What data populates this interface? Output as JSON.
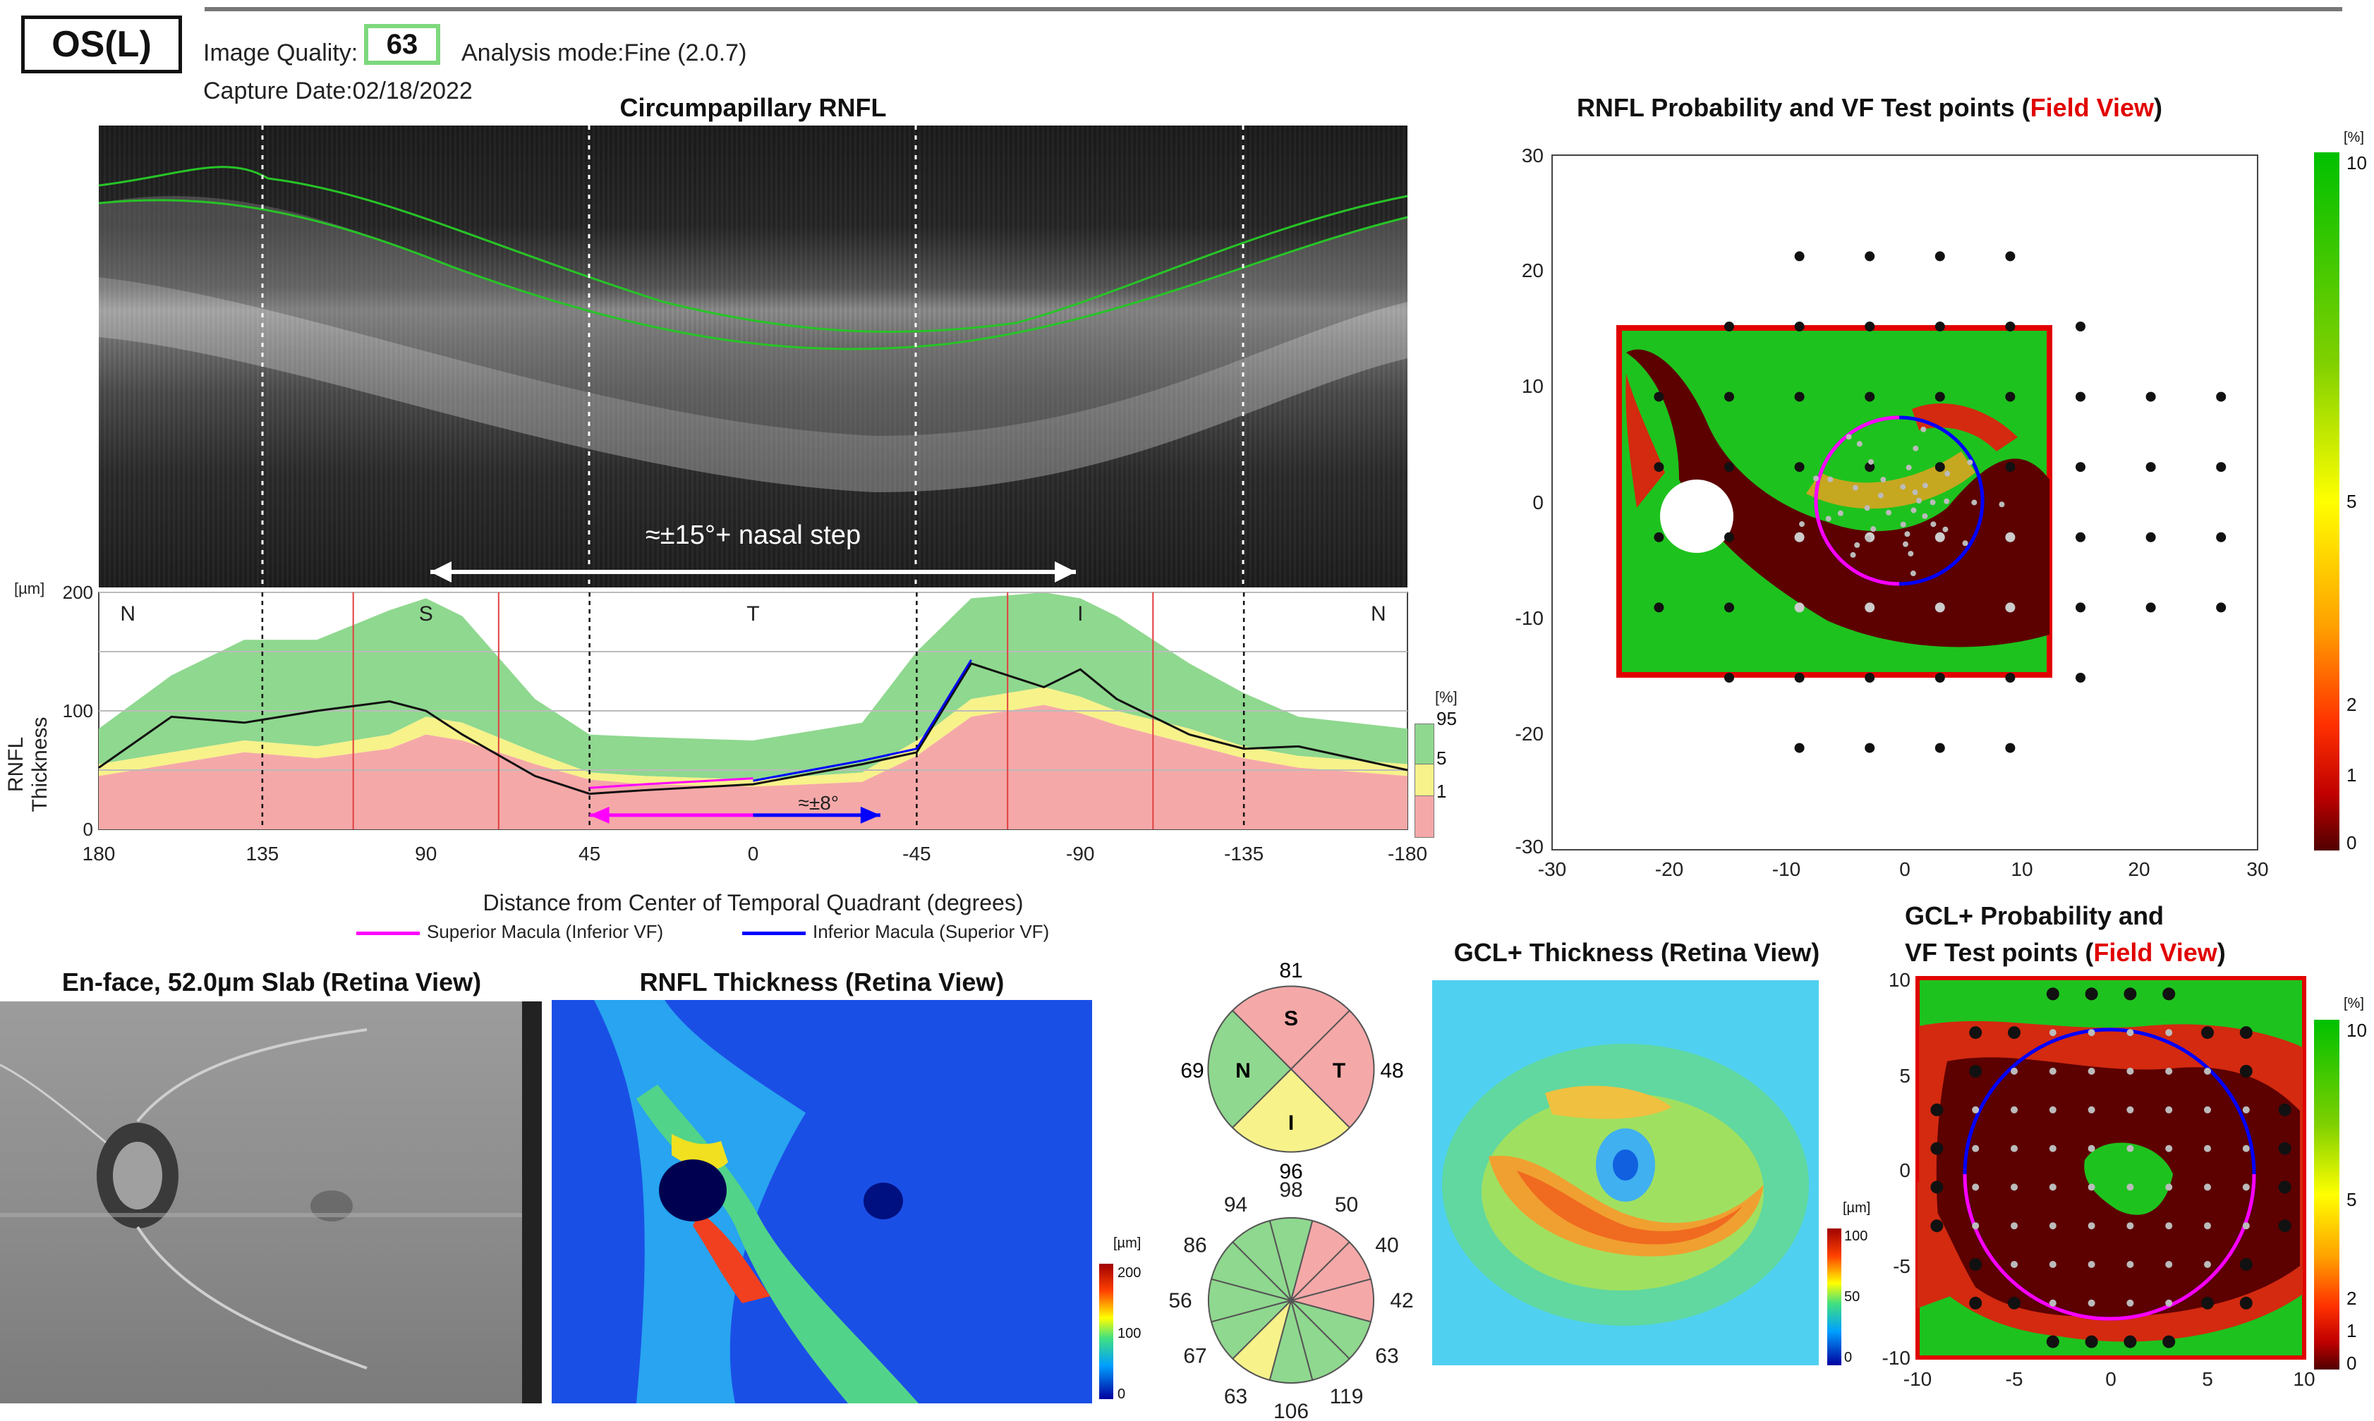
{
  "header": {
    "eye": "OS(L)",
    "image_quality_label": "Image Quality:",
    "image_quality_value": "63",
    "analysis_mode": "Analysis mode:Fine (2.0.7)",
    "capture_date": "Capture Date:02/18/2022"
  },
  "colors": {
    "normal_green": "#8fd88f",
    "borderline_yellow": "#f7f28a",
    "abnormal_red": "#f5a8a8",
    "superior_macula": "#ff00ff",
    "inferior_macula": "#0000ff",
    "field_view_red": "#e10000"
  },
  "rnfl_panel": {
    "title": "Circumpapillary RNFL",
    "annotation_nasal_step": "≈±15°+ nasal step",
    "annotation_8deg": "≈±8°",
    "quadrants": [
      "N",
      "S",
      "T",
      "I",
      "N"
    ],
    "y_unit": "[µm]",
    "y_axis_label": "RNFL Thickness",
    "x_axis_label": "Distance from Center of Temporal Quadrant (degrees)",
    "legend_superior": "Superior Macula (Inferior VF)",
    "legend_inferior": "Inferior Macula (Superior VF)",
    "percentile_unit": "[%]",
    "percentile_labels": [
      "95",
      "5",
      "1"
    ]
  },
  "chart_data": {
    "type": "area",
    "title": "Circumpapillary RNFL",
    "xlabel": "Distance from Center of Temporal Quadrant (degrees)",
    "ylabel": "RNFL Thickness",
    "x_ticks": [
      "180",
      "135",
      "90",
      "45",
      "0",
      "-45",
      "-90",
      "-135",
      "-180"
    ],
    "y_ticks": [
      "0",
      "100",
      "200"
    ],
    "xlim": [
      180,
      -180
    ],
    "ylim": [
      0,
      200
    ],
    "x": [
      180,
      160,
      140,
      120,
      100,
      90,
      80,
      60,
      45,
      30,
      0,
      -30,
      -45,
      -60,
      -80,
      -90,
      -100,
      -120,
      -135,
      -150,
      -180
    ],
    "normal_95": [
      85,
      130,
      160,
      160,
      185,
      195,
      180,
      110,
      80,
      78,
      75,
      90,
      150,
      195,
      200,
      195,
      180,
      140,
      115,
      95,
      85
    ],
    "normal_5": [
      55,
      65,
      75,
      70,
      80,
      95,
      90,
      65,
      48,
      45,
      42,
      48,
      75,
      110,
      120,
      112,
      100,
      85,
      70,
      62,
      55
    ],
    "normal_1": [
      45,
      55,
      65,
      60,
      68,
      80,
      75,
      55,
      42,
      38,
      36,
      40,
      62,
      95,
      105,
      98,
      88,
      72,
      60,
      52,
      45
    ],
    "patient": [
      52,
      95,
      90,
      100,
      108,
      100,
      80,
      45,
      30,
      33,
      38,
      55,
      65,
      140,
      120,
      135,
      110,
      80,
      68,
      70,
      50
    ]
  },
  "probability_panel": {
    "title_main": "RNFL Probability and VF Test points (",
    "title_red": "Field View",
    "title_end": ")",
    "x_ticks": [
      "-30",
      "-20",
      "-10",
      "0",
      "10",
      "20",
      "30"
    ],
    "y_ticks": [
      "30",
      "20",
      "10",
      "0",
      "-10",
      "-20",
      "-30"
    ],
    "scale_unit": "[%]",
    "scale_labels": [
      "10",
      "5",
      "2",
      "1",
      "0"
    ]
  },
  "enface": {
    "title": "En-face, 52.0µm Slab (Retina View)"
  },
  "rnfl_thickness_map": {
    "title": "RNFL Thickness (Retina View)",
    "scale_unit": "[µm]",
    "scale_labels": [
      "200",
      "100",
      "0"
    ]
  },
  "quadrant_chart": {
    "S": "S",
    "N": "N",
    "T": "T",
    "I": "I",
    "S_value": "81",
    "N_value": "69",
    "T_value": "48",
    "I_value": "96"
  },
  "clock_chart": {
    "values": [
      "98",
      "50",
      "40",
      "42",
      "63",
      "119",
      "106",
      "63",
      "67",
      "56",
      "86",
      "94"
    ]
  },
  "gcl_map": {
    "title": "GCL+ Thickness (Retina View)",
    "scale_unit": "[µm]",
    "scale_labels": [
      "100",
      "50",
      "0"
    ]
  },
  "gcl_probability": {
    "title_line1": "GCL+ Probability and",
    "title_line2_main": "VF Test points (",
    "title_line2_red": "Field View",
    "title_line2_end": ")",
    "x_ticks": [
      "-10",
      "-5",
      "0",
      "5",
      "10"
    ],
    "y_ticks": [
      "10",
      "5",
      "0",
      "-5",
      "-10"
    ],
    "scale_unit": "[%]",
    "scale_labels": [
      "10",
      "5",
      "2",
      "1",
      "0"
    ]
  }
}
